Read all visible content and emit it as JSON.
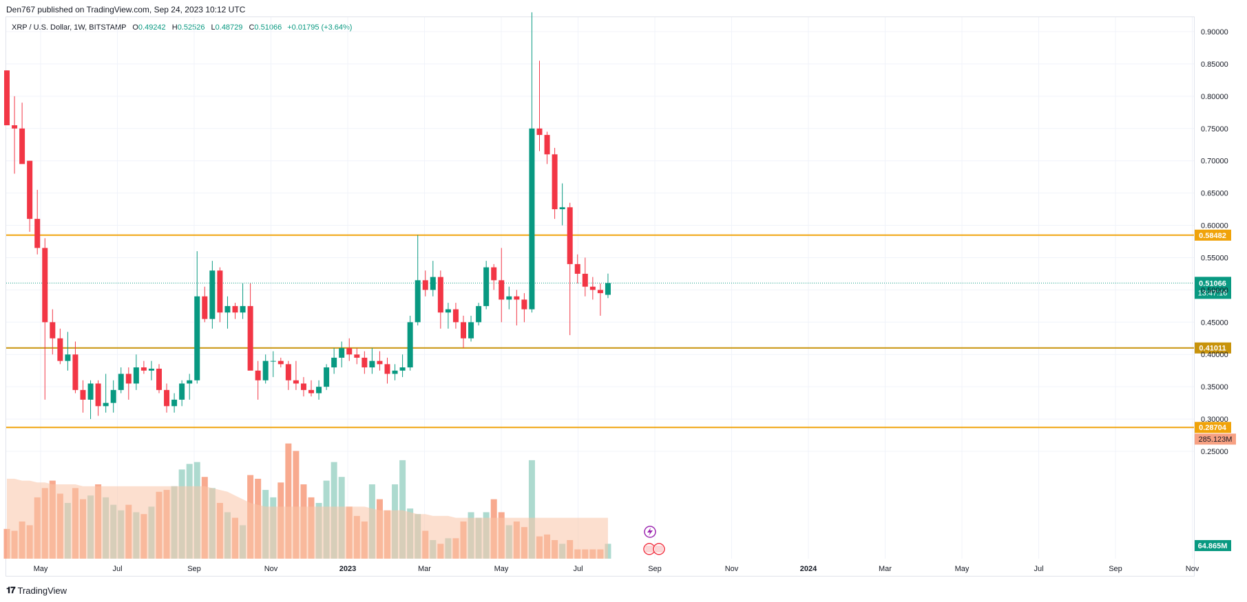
{
  "header": {
    "published": "Den767 published on TradingView.com, Sep 24, 2023 10:12 UTC"
  },
  "legend": {
    "symbol": "XRP / U.S. Dollar, 1W, BITSTAMP",
    "o_label": "O",
    "o_value": "0.49242",
    "h_label": "H",
    "h_value": "0.52526",
    "l_label": "L",
    "l_value": "0.48729",
    "c_label": "C",
    "c_value": "0.51066",
    "change": "+0.01795 (+3.64%)"
  },
  "footer": {
    "brand": "TradingView",
    "logo_icon": "tradingview-logo-icon"
  },
  "colors": {
    "up": "#089981",
    "down": "#f23645",
    "level": "#f0a30a",
    "level_dark": "#c8930b",
    "vol_up": "#b4ad93",
    "vol_down": "#f7a183",
    "volume_ma": "#f9c4a8"
  },
  "chart_data": {
    "type": "candlestick",
    "timeframe": "1W",
    "y_axis": {
      "ticks": [
        "0.90000",
        "0.85000",
        "0.80000",
        "0.75000",
        "0.70000",
        "0.65000",
        "0.60000",
        "0.55000",
        "0.50000",
        "0.45000",
        "0.40000",
        "0.35000",
        "0.30000",
        "0.25000"
      ],
      "range": [
        0.215,
        0.925
      ]
    },
    "x_axis": {
      "ticks": [
        "May",
        "Jul",
        "Sep",
        "Nov",
        "2023",
        "Mar",
        "May",
        "Jul",
        "Sep",
        "Nov",
        "2024",
        "Mar",
        "May",
        "Jul",
        "Sep",
        "Nov"
      ]
    },
    "levels": [
      {
        "label": "0.58482",
        "value": 0.58482
      },
      {
        "label": "0.41011",
        "value": 0.41011
      },
      {
        "label": "0.28704",
        "value": 0.28704
      }
    ],
    "last_price": {
      "label": "0.51066",
      "value": 0.51066,
      "countdown": "13:47:16"
    },
    "volume_labels": {
      "ma": "285.123M",
      "last": "64.865M"
    },
    "candles": [
      {
        "o": 0.84,
        "h": 0.84,
        "l": 0.76,
        "c": 0.755
      },
      {
        "o": 0.755,
        "h": 0.8,
        "l": 0.68,
        "c": 0.75
      },
      {
        "o": 0.75,
        "h": 0.79,
        "l": 0.7,
        "c": 0.695
      },
      {
        "o": 0.7,
        "h": 0.7,
        "l": 0.59,
        "c": 0.61
      },
      {
        "o": 0.61,
        "h": 0.655,
        "l": 0.555,
        "c": 0.565
      },
      {
        "o": 0.565,
        "h": 0.58,
        "l": 0.33,
        "c": 0.45
      },
      {
        "o": 0.45,
        "h": 0.47,
        "l": 0.4,
        "c": 0.425
      },
      {
        "o": 0.425,
        "h": 0.44,
        "l": 0.385,
        "c": 0.39
      },
      {
        "o": 0.39,
        "h": 0.435,
        "l": 0.375,
        "c": 0.4
      },
      {
        "o": 0.4,
        "h": 0.42,
        "l": 0.34,
        "c": 0.345
      },
      {
        "o": 0.345,
        "h": 0.36,
        "l": 0.31,
        "c": 0.33
      },
      {
        "o": 0.33,
        "h": 0.36,
        "l": 0.3,
        "c": 0.355
      },
      {
        "o": 0.355,
        "h": 0.36,
        "l": 0.305,
        "c": 0.32
      },
      {
        "o": 0.32,
        "h": 0.37,
        "l": 0.31,
        "c": 0.325
      },
      {
        "o": 0.325,
        "h": 0.36,
        "l": 0.31,
        "c": 0.345
      },
      {
        "o": 0.345,
        "h": 0.38,
        "l": 0.34,
        "c": 0.37
      },
      {
        "o": 0.37,
        "h": 0.38,
        "l": 0.33,
        "c": 0.355
      },
      {
        "o": 0.355,
        "h": 0.4,
        "l": 0.345,
        "c": 0.38
      },
      {
        "o": 0.38,
        "h": 0.39,
        "l": 0.37,
        "c": 0.375
      },
      {
        "o": 0.375,
        "h": 0.39,
        "l": 0.36,
        "c": 0.378
      },
      {
        "o": 0.378,
        "h": 0.385,
        "l": 0.34,
        "c": 0.345
      },
      {
        "o": 0.345,
        "h": 0.355,
        "l": 0.31,
        "c": 0.32
      },
      {
        "o": 0.32,
        "h": 0.34,
        "l": 0.31,
        "c": 0.33
      },
      {
        "o": 0.33,
        "h": 0.36,
        "l": 0.32,
        "c": 0.355
      },
      {
        "o": 0.355,
        "h": 0.37,
        "l": 0.33,
        "c": 0.36
      },
      {
        "o": 0.36,
        "h": 0.56,
        "l": 0.355,
        "c": 0.49
      },
      {
        "o": 0.49,
        "h": 0.505,
        "l": 0.45,
        "c": 0.455
      },
      {
        "o": 0.455,
        "h": 0.545,
        "l": 0.44,
        "c": 0.53
      },
      {
        "o": 0.53,
        "h": 0.535,
        "l": 0.45,
        "c": 0.465
      },
      {
        "o": 0.465,
        "h": 0.49,
        "l": 0.44,
        "c": 0.475
      },
      {
        "o": 0.475,
        "h": 0.48,
        "l": 0.455,
        "c": 0.465
      },
      {
        "o": 0.465,
        "h": 0.51,
        "l": 0.455,
        "c": 0.475
      },
      {
        "o": 0.475,
        "h": 0.51,
        "l": 0.38,
        "c": 0.375
      },
      {
        "o": 0.375,
        "h": 0.39,
        "l": 0.33,
        "c": 0.36
      },
      {
        "o": 0.36,
        "h": 0.4,
        "l": 0.355,
        "c": 0.39
      },
      {
        "o": 0.39,
        "h": 0.405,
        "l": 0.365,
        "c": 0.39
      },
      {
        "o": 0.39,
        "h": 0.395,
        "l": 0.38,
        "c": 0.385
      },
      {
        "o": 0.385,
        "h": 0.39,
        "l": 0.345,
        "c": 0.36
      },
      {
        "o": 0.36,
        "h": 0.39,
        "l": 0.345,
        "c": 0.355
      },
      {
        "o": 0.355,
        "h": 0.365,
        "l": 0.335,
        "c": 0.345
      },
      {
        "o": 0.345,
        "h": 0.36,
        "l": 0.335,
        "c": 0.34
      },
      {
        "o": 0.34,
        "h": 0.36,
        "l": 0.33,
        "c": 0.35
      },
      {
        "o": 0.35,
        "h": 0.385,
        "l": 0.345,
        "c": 0.38
      },
      {
        "o": 0.38,
        "h": 0.41,
        "l": 0.37,
        "c": 0.395
      },
      {
        "o": 0.395,
        "h": 0.42,
        "l": 0.38,
        "c": 0.41
      },
      {
        "o": 0.41,
        "h": 0.425,
        "l": 0.39,
        "c": 0.4
      },
      {
        "o": 0.4,
        "h": 0.41,
        "l": 0.385,
        "c": 0.395
      },
      {
        "o": 0.395,
        "h": 0.405,
        "l": 0.37,
        "c": 0.38
      },
      {
        "o": 0.38,
        "h": 0.41,
        "l": 0.37,
        "c": 0.39
      },
      {
        "o": 0.39,
        "h": 0.405,
        "l": 0.375,
        "c": 0.385
      },
      {
        "o": 0.385,
        "h": 0.395,
        "l": 0.355,
        "c": 0.37
      },
      {
        "o": 0.37,
        "h": 0.385,
        "l": 0.36,
        "c": 0.375
      },
      {
        "o": 0.375,
        "h": 0.4,
        "l": 0.365,
        "c": 0.38
      },
      {
        "o": 0.38,
        "h": 0.46,
        "l": 0.375,
        "c": 0.45
      },
      {
        "o": 0.45,
        "h": 0.585,
        "l": 0.445,
        "c": 0.515
      },
      {
        "o": 0.515,
        "h": 0.53,
        "l": 0.49,
        "c": 0.5
      },
      {
        "o": 0.5,
        "h": 0.545,
        "l": 0.49,
        "c": 0.52
      },
      {
        "o": 0.52,
        "h": 0.53,
        "l": 0.44,
        "c": 0.465
      },
      {
        "o": 0.465,
        "h": 0.48,
        "l": 0.44,
        "c": 0.47
      },
      {
        "o": 0.47,
        "h": 0.48,
        "l": 0.44,
        "c": 0.45
      },
      {
        "o": 0.45,
        "h": 0.46,
        "l": 0.41,
        "c": 0.425
      },
      {
        "o": 0.425,
        "h": 0.46,
        "l": 0.42,
        "c": 0.45
      },
      {
        "o": 0.45,
        "h": 0.48,
        "l": 0.445,
        "c": 0.475
      },
      {
        "o": 0.475,
        "h": 0.545,
        "l": 0.47,
        "c": 0.535
      },
      {
        "o": 0.535,
        "h": 0.54,
        "l": 0.5,
        "c": 0.515
      },
      {
        "o": 0.515,
        "h": 0.565,
        "l": 0.45,
        "c": 0.485
      },
      {
        "o": 0.485,
        "h": 0.505,
        "l": 0.47,
        "c": 0.49
      },
      {
        "o": 0.49,
        "h": 0.5,
        "l": 0.445,
        "c": 0.485
      },
      {
        "o": 0.485,
        "h": 0.495,
        "l": 0.45,
        "c": 0.47
      },
      {
        "o": 0.47,
        "h": 0.93,
        "l": 0.465,
        "c": 0.75
      },
      {
        "o": 0.75,
        "h": 0.855,
        "l": 0.715,
        "c": 0.74
      },
      {
        "o": 0.74,
        "h": 0.745,
        "l": 0.695,
        "c": 0.71
      },
      {
        "o": 0.71,
        "h": 0.72,
        "l": 0.61,
        "c": 0.625
      },
      {
        "o": 0.625,
        "h": 0.665,
        "l": 0.6,
        "c": 0.628
      },
      {
        "o": 0.628,
        "h": 0.635,
        "l": 0.43,
        "c": 0.54
      },
      {
        "o": 0.54,
        "h": 0.555,
        "l": 0.51,
        "c": 0.525
      },
      {
        "o": 0.525,
        "h": 0.55,
        "l": 0.49,
        "c": 0.505
      },
      {
        "o": 0.505,
        "h": 0.52,
        "l": 0.485,
        "c": 0.5
      },
      {
        "o": 0.5,
        "h": 0.51,
        "l": 0.46,
        "c": 0.495
      },
      {
        "o": 0.49242,
        "h": 0.52526,
        "l": 0.48729,
        "c": 0.51066
      }
    ],
    "volume": {
      "range_max": 0.3,
      "values": [
        0.16,
        0.15,
        0.2,
        0.18,
        0.33,
        0.38,
        0.42,
        0.35,
        0.3,
        0.38,
        0.32,
        0.34,
        0.4,
        0.33,
        0.29,
        0.26,
        0.29,
        0.25,
        0.24,
        0.28,
        0.36,
        0.37,
        0.39,
        0.48,
        0.51,
        0.52,
        0.44,
        0.38,
        0.3,
        0.25,
        0.22,
        0.18,
        0.45,
        0.43,
        0.37,
        0.33,
        0.41,
        0.62,
        0.58,
        0.4,
        0.33,
        0.3,
        0.42,
        0.52,
        0.44,
        0.28,
        0.23,
        0.2,
        0.4,
        0.32,
        0.26,
        0.4,
        0.53,
        0.27,
        0.24,
        0.15,
        0.1,
        0.08,
        0.11,
        0.11,
        0.2,
        0.25,
        0.22,
        0.25,
        0.32,
        0.25,
        0.18,
        0.2,
        0.17,
        0.53,
        0.12,
        0.13,
        0.1,
        0.08,
        0.1,
        0.05,
        0.05,
        0.05,
        0.05,
        0.08
      ],
      "ma": [
        0.43,
        0.43,
        0.42,
        0.42,
        0.41,
        0.41,
        0.4,
        0.4,
        0.4,
        0.4,
        0.39,
        0.39,
        0.39,
        0.39,
        0.39,
        0.39,
        0.39,
        0.39,
        0.39,
        0.39,
        0.39,
        0.39,
        0.39,
        0.39,
        0.39,
        0.39,
        0.39,
        0.38,
        0.37,
        0.36,
        0.34,
        0.32,
        0.3,
        0.29,
        0.28,
        0.28,
        0.28,
        0.28,
        0.28,
        0.28,
        0.28,
        0.28,
        0.28,
        0.28,
        0.28,
        0.28,
        0.28,
        0.28,
        0.27,
        0.26,
        0.26,
        0.26,
        0.26,
        0.25,
        0.24,
        0.24,
        0.23,
        0.23,
        0.23,
        0.22,
        0.22,
        0.22,
        0.22,
        0.22,
        0.22,
        0.22,
        0.22,
        0.22,
        0.22,
        0.22,
        0.22,
        0.22,
        0.22,
        0.22,
        0.22,
        0.22,
        0.22,
        0.22,
        0.22,
        0.22
      ]
    }
  }
}
